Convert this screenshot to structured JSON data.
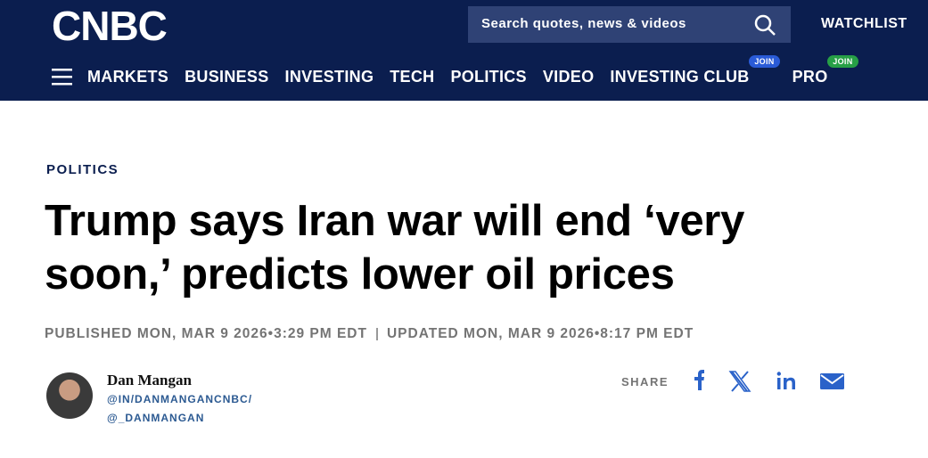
{
  "header": {
    "logo": "CNBC",
    "search_placeholder": "Search quotes, news & videos",
    "watchlist": "WATCHLIST",
    "nav": [
      {
        "label": "MARKETS"
      },
      {
        "label": "BUSINESS"
      },
      {
        "label": "INVESTING"
      },
      {
        "label": "TECH"
      },
      {
        "label": "POLITICS"
      },
      {
        "label": "VIDEO"
      },
      {
        "label": "INVESTING CLUB",
        "badge": "JOIN"
      },
      {
        "label": "PRO",
        "badge": "JOIN"
      }
    ]
  },
  "article": {
    "section": "POLITICS",
    "headline": "Trump says Iran war will end ‘very soon,’ predicts lower oil prices",
    "published": "PUBLISHED MON, MAR 9 2026•3:29 PM EDT",
    "updated": "UPDATED MON, MAR 9 2026•8:17 PM EDT",
    "author": {
      "name": "Dan Mangan",
      "links": [
        "@IN/DANMANGANCNBC/",
        "@_DANMANGAN"
      ]
    },
    "share_label": "SHARE"
  }
}
